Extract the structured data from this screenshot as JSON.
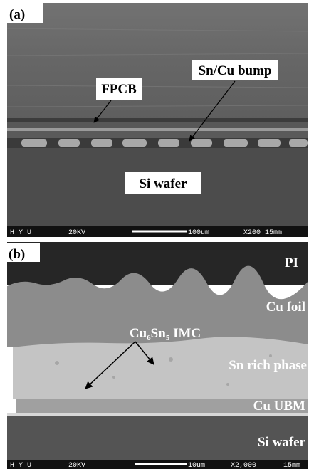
{
  "figure": {
    "panels": [
      {
        "label": "(a)",
        "annotations": [
          "FPCB",
          "Sn/Cu bump",
          "Si wafer"
        ],
        "info_bar": [
          "H Y U",
          "20KV",
          "100um",
          "X200 15mm"
        ]
      },
      {
        "label": "(b)",
        "annotations": [
          "PI",
          "Cu foil",
          "Cu6Sn5 IMC",
          "Sn rich phase",
          "Cu UBM",
          "Si wafer"
        ],
        "info_bar": [
          "H Y U",
          "20KV",
          "10um",
          "X2,000",
          "15mm"
        ]
      }
    ]
  }
}
